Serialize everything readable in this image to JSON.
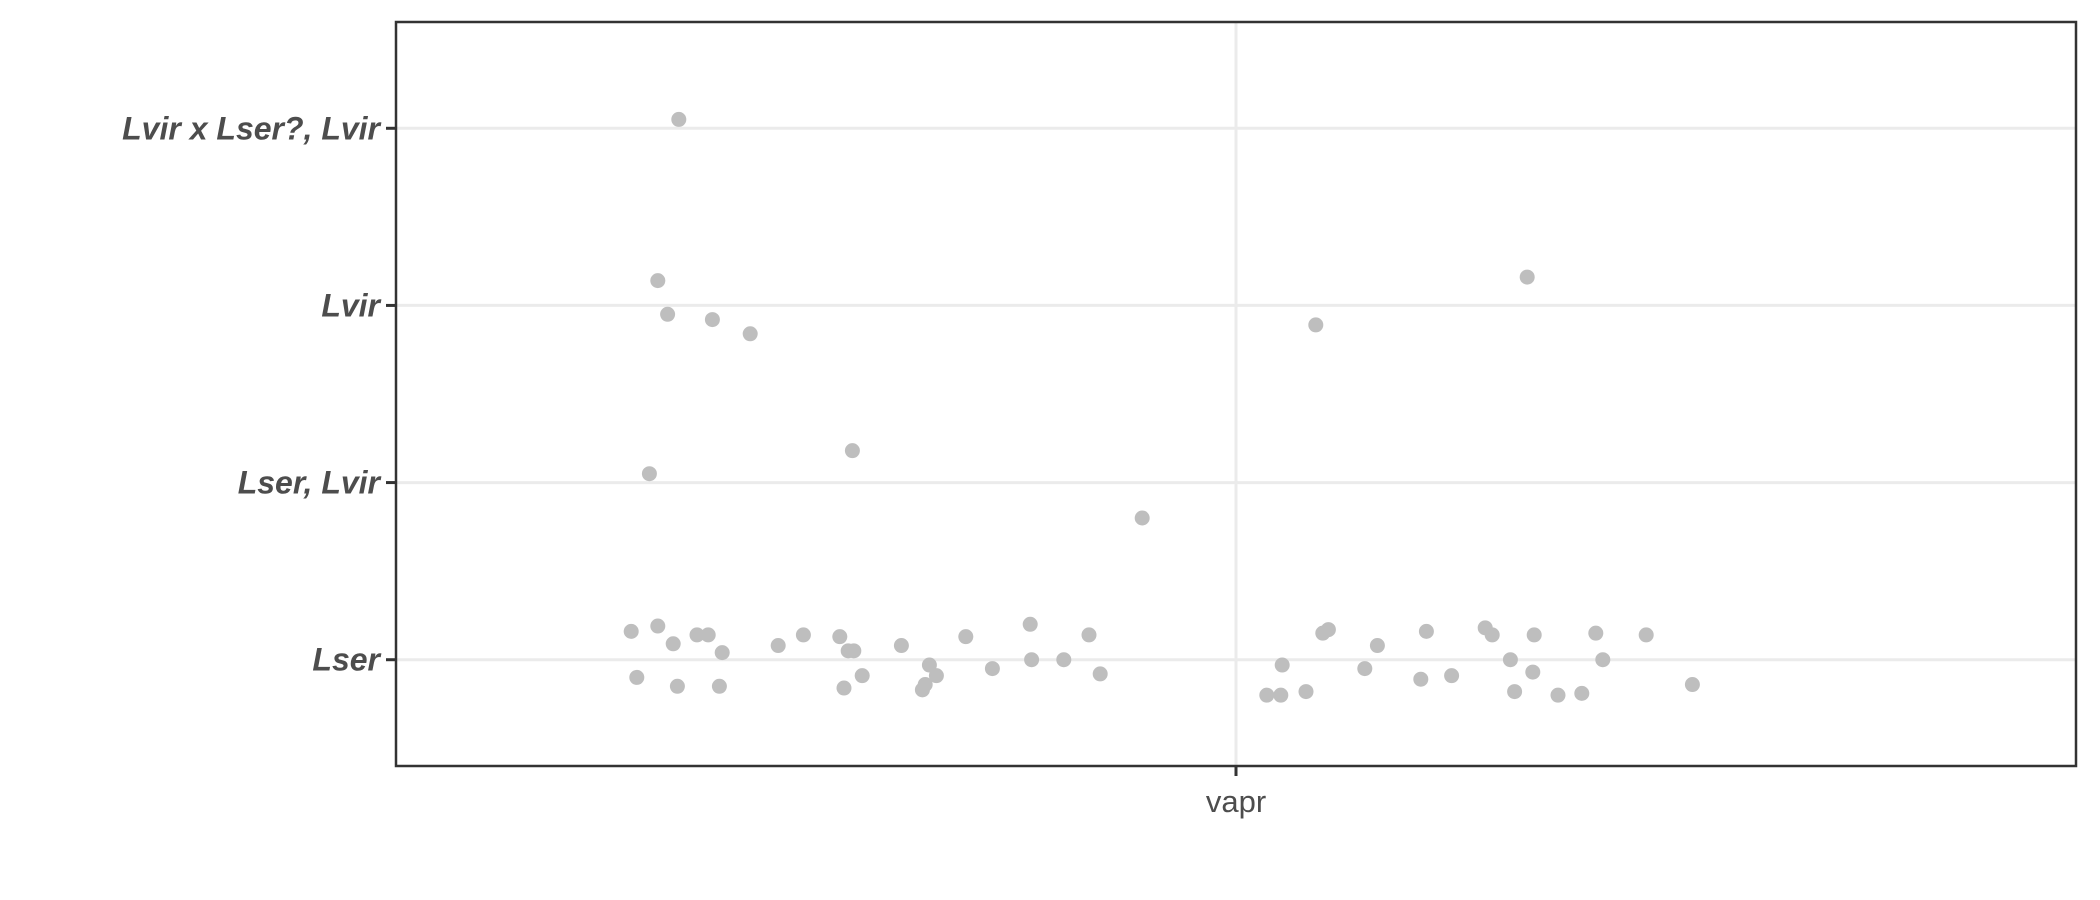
{
  "chart_data": {
    "type": "scatter",
    "title": "",
    "xlabel": "",
    "ylabel": "",
    "x_categories": [
      "vapr"
    ],
    "y_categories": [
      "Lser",
      "Lser, Lvir",
      "Lvir",
      "Lvir x Lser?, Lvir"
    ],
    "jitter": "horizontal and vertical jitter around category positions",
    "grid": true,
    "legend": "none",
    "point_color": "#bebebe",
    "points": [
      {
        "x": 0.602,
        "y": 3.05
      },
      {
        "x": 0.587,
        "y": 2.14
      },
      {
        "x": 0.594,
        "y": 1.95
      },
      {
        "x": 0.626,
        "y": 1.92
      },
      {
        "x": 0.653,
        "y": 1.84
      },
      {
        "x": 1.208,
        "y": 2.16
      },
      {
        "x": 1.057,
        "y": 1.89
      },
      {
        "x": 0.581,
        "y": 1.05
      },
      {
        "x": 0.726,
        "y": 1.18
      },
      {
        "x": 0.933,
        "y": 0.8
      },
      {
        "x": 0.568,
        "y": 0.16
      },
      {
        "x": 0.572,
        "y": -0.1
      },
      {
        "x": 0.587,
        "y": 0.19
      },
      {
        "x": 0.598,
        "y": 0.09
      },
      {
        "x": 0.601,
        "y": -0.15
      },
      {
        "x": 0.615,
        "y": 0.14
      },
      {
        "x": 0.623,
        "y": 0.14
      },
      {
        "x": 0.631,
        "y": -0.15
      },
      {
        "x": 0.633,
        "y": 0.04
      },
      {
        "x": 0.673,
        "y": 0.08
      },
      {
        "x": 0.691,
        "y": 0.14
      },
      {
        "x": 0.717,
        "y": 0.13
      },
      {
        "x": 0.72,
        "y": -0.16
      },
      {
        "x": 0.723,
        "y": 0.05
      },
      {
        "x": 0.727,
        "y": 0.05
      },
      {
        "x": 0.733,
        "y": -0.09
      },
      {
        "x": 0.761,
        "y": 0.08
      },
      {
        "x": 0.776,
        "y": -0.17
      },
      {
        "x": 0.778,
        "y": -0.14
      },
      {
        "x": 0.781,
        "y": -0.03
      },
      {
        "x": 0.786,
        "y": -0.09
      },
      {
        "x": 0.807,
        "y": 0.13
      },
      {
        "x": 0.826,
        "y": -0.05
      },
      {
        "x": 0.853,
        "y": 0.2
      },
      {
        "x": 0.854,
        "y": 0.0
      },
      {
        "x": 0.877,
        "y": 0.0
      },
      {
        "x": 0.895,
        "y": 0.14
      },
      {
        "x": 0.903,
        "y": -0.08
      },
      {
        "x": 1.022,
        "y": -0.2
      },
      {
        "x": 1.032,
        "y": -0.2
      },
      {
        "x": 1.033,
        "y": -0.03
      },
      {
        "x": 1.05,
        "y": -0.18
      },
      {
        "x": 1.062,
        "y": 0.15
      },
      {
        "x": 1.066,
        "y": 0.17
      },
      {
        "x": 1.092,
        "y": -0.05
      },
      {
        "x": 1.101,
        "y": 0.08
      },
      {
        "x": 1.132,
        "y": -0.11
      },
      {
        "x": 1.136,
        "y": 0.16
      },
      {
        "x": 1.154,
        "y": -0.09
      },
      {
        "x": 1.178,
        "y": 0.18
      },
      {
        "x": 1.183,
        "y": 0.14
      },
      {
        "x": 1.196,
        "y": 0.0
      },
      {
        "x": 1.199,
        "y": -0.18
      },
      {
        "x": 1.212,
        "y": -0.07
      },
      {
        "x": 1.213,
        "y": 0.14
      },
      {
        "x": 1.23,
        "y": -0.2
      },
      {
        "x": 1.247,
        "y": -0.19
      },
      {
        "x": 1.257,
        "y": 0.15
      },
      {
        "x": 1.262,
        "y": 0.0
      },
      {
        "x": 1.293,
        "y": 0.14
      },
      {
        "x": 1.326,
        "y": -0.14
      }
    ]
  }
}
